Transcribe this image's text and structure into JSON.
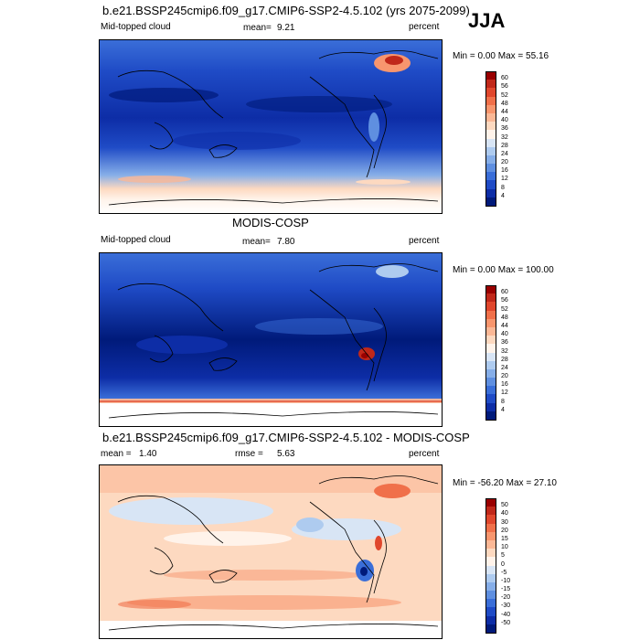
{
  "season": "JJA",
  "panels": [
    {
      "id": "model",
      "header": "b.e21.BSSP245cmip6.f09_g17.CMIP6-SSP2-4.5.102 (yrs 2075-2099)",
      "left_label": "Mid-topped cloud",
      "stat_label": "mean=",
      "stat_value": "9.21",
      "stat2_label": "",
      "stat2_value": "",
      "units": "percent",
      "minmax": "Min =   0.00 Max =  55.16",
      "colorbar": {
        "labels": [
          "60",
          "56",
          "52",
          "48",
          "44",
          "40",
          "36",
          "32",
          "28",
          "24",
          "20",
          "16",
          "12",
          "8",
          "4"
        ],
        "colors": [
          "#990000",
          "#c0281a",
          "#e0472d",
          "#f0704a",
          "#f8966e",
          "#fbb896",
          "#fdd9c0",
          "#fff3ea",
          "#d8e5f5",
          "#aecbef",
          "#86aee8",
          "#5f8fe0",
          "#3a6ed8",
          "#1f4bc6",
          "#0d2da6",
          "#001a7a"
        ]
      }
    },
    {
      "id": "obs",
      "header": "MODIS-COSP",
      "left_label": "Mid-topped cloud",
      "stat_label": "mean=",
      "stat_value": "7.80",
      "stat2_label": "",
      "stat2_value": "",
      "units": "percent",
      "minmax": "Min =   0.00 Max = 100.00",
      "colorbar": {
        "labels": [
          "60",
          "56",
          "52",
          "48",
          "44",
          "40",
          "36",
          "32",
          "28",
          "24",
          "20",
          "16",
          "12",
          "8",
          "4"
        ],
        "colors": [
          "#990000",
          "#c0281a",
          "#e0472d",
          "#f0704a",
          "#f8966e",
          "#fbb896",
          "#fdd9c0",
          "#fff3ea",
          "#d8e5f5",
          "#aecbef",
          "#86aee8",
          "#5f8fe0",
          "#3a6ed8",
          "#1f4bc6",
          "#0d2da6",
          "#001a7a"
        ]
      }
    },
    {
      "id": "diff",
      "header": "b.e21.BSSP245cmip6.f09_g17.CMIP6-SSP2-4.5.102 - MODIS-COSP",
      "left_label": "",
      "stat_label": "mean =",
      "stat_value": "1.40",
      "stat2_label": "rmse =",
      "stat2_value": "5.63",
      "units": "percent",
      "minmax": "Min = -56.20 Max =  27.10",
      "colorbar": {
        "labels": [
          "50",
          "40",
          "30",
          "20",
          "15",
          "10",
          "5",
          "0",
          "-5",
          "-10",
          "-15",
          "-20",
          "-30",
          "-40",
          "-50"
        ],
        "colors": [
          "#990000",
          "#c0281a",
          "#e0472d",
          "#f0704a",
          "#f8966e",
          "#fbb896",
          "#fdd9c0",
          "#fff3ea",
          "#d8e5f5",
          "#aecbef",
          "#86aee8",
          "#5f8fe0",
          "#3a6ed8",
          "#1f4bc6",
          "#0d2da6",
          "#001a7a"
        ]
      }
    }
  ]
}
